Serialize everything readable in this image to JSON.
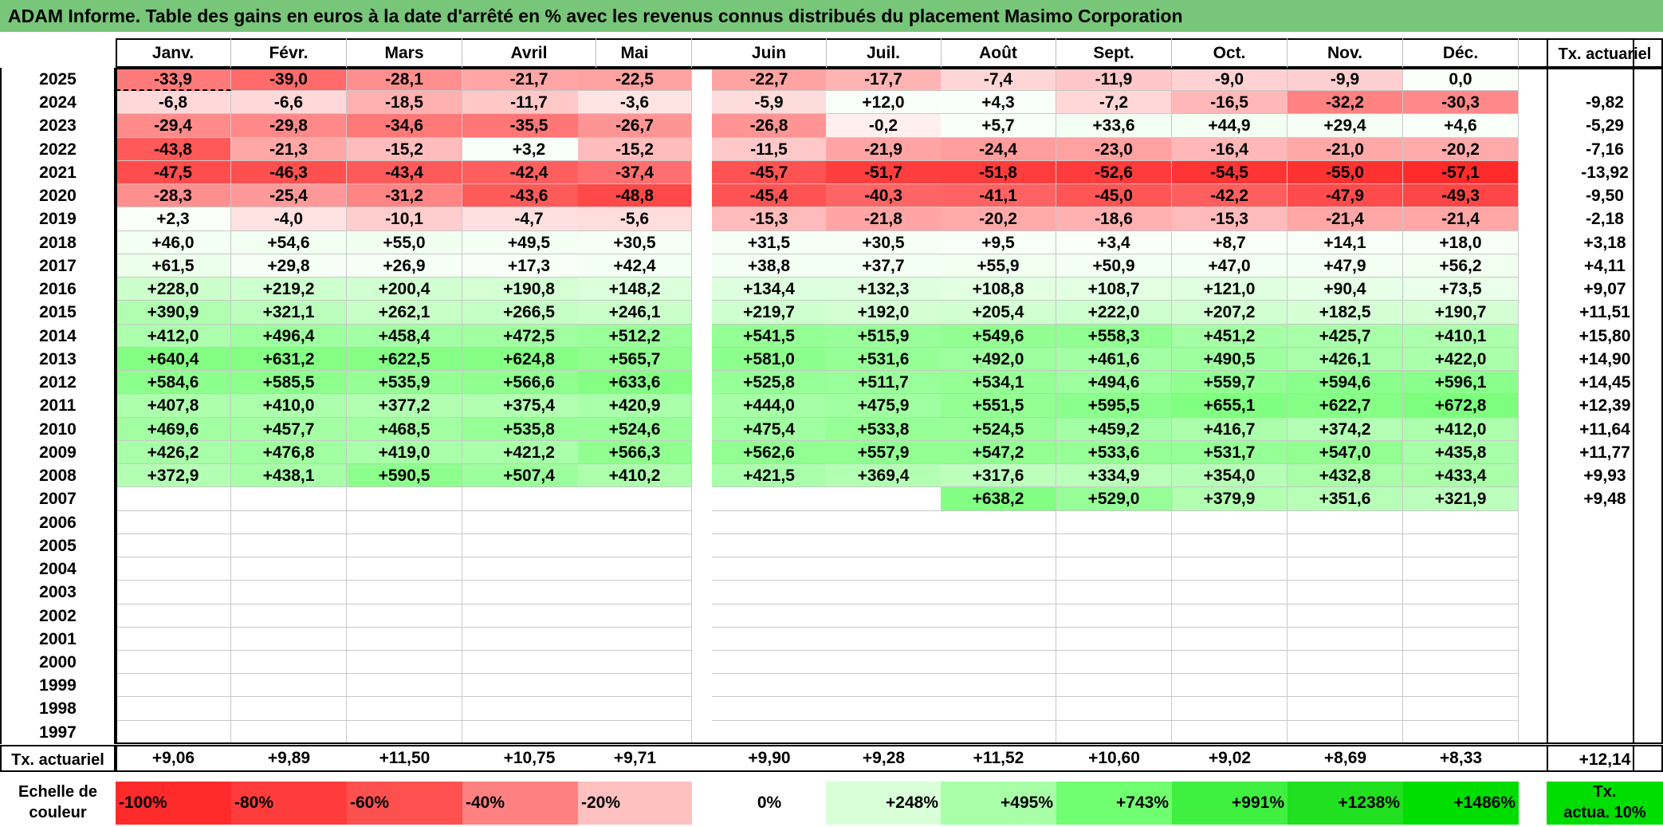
{
  "title": "ADAM Informe. Table des gains en euros à la date d'arrêté en % avec les revenus connus distribués du placement Masimo Corporation",
  "chart_data": {
    "type": "heatmap",
    "title": "ADAM Informe. Table des gains en euros à la date d'arrêté en % avec les revenus connus distribués du placement Masimo Corporation",
    "columns": [
      "Janv.",
      "Févr.",
      "Mars",
      "Avril",
      "Mai",
      "Juin",
      "Juil.",
      "Août",
      "Sept.",
      "Oct.",
      "Nov.",
      "Déc."
    ],
    "annual_header": "Tx. actuariel",
    "rows": [
      {
        "year": "2025",
        "values": [
          "-33,9",
          "-39,0",
          "-28,1",
          "-21,7",
          "-22,5",
          "-22,7",
          "-17,7",
          "-7,4",
          "-11,9",
          "-9,0",
          "-9,9",
          "0,0"
        ],
        "tx": ""
      },
      {
        "year": "2024",
        "values": [
          "-6,8",
          "-6,6",
          "-18,5",
          "-11,7",
          "-3,6",
          "-5,9",
          "+12,0",
          "+4,3",
          "-7,2",
          "-16,5",
          "-32,2",
          "-30,3"
        ],
        "tx": "-9,82"
      },
      {
        "year": "2023",
        "values": [
          "-29,4",
          "-29,8",
          "-34,6",
          "-35,5",
          "-26,7",
          "-26,8",
          "-0,2",
          "+5,7",
          "+33,6",
          "+44,9",
          "+29,4",
          "+4,6"
        ],
        "tx": "-5,29"
      },
      {
        "year": "2022",
        "values": [
          "-43,8",
          "-21,3",
          "-15,2",
          "+3,2",
          "-15,2",
          "-11,5",
          "-21,9",
          "-24,4",
          "-23,0",
          "-16,4",
          "-21,0",
          "-20,2"
        ],
        "tx": "-7,16"
      },
      {
        "year": "2021",
        "values": [
          "-47,5",
          "-46,3",
          "-43,4",
          "-42,4",
          "-37,4",
          "-45,7",
          "-51,7",
          "-51,8",
          "-52,6",
          "-54,5",
          "-55,0",
          "-57,1"
        ],
        "tx": "-13,92"
      },
      {
        "year": "2020",
        "values": [
          "-28,3",
          "-25,4",
          "-31,2",
          "-43,6",
          "-48,8",
          "-45,4",
          "-40,3",
          "-41,1",
          "-45,0",
          "-42,2",
          "-47,9",
          "-49,3"
        ],
        "tx": "-9,50"
      },
      {
        "year": "2019",
        "values": [
          "+2,3",
          "-4,0",
          "-10,1",
          "-4,7",
          "-5,6",
          "-15,3",
          "-21,8",
          "-20,2",
          "-18,6",
          "-15,3",
          "-21,4",
          "-21,4"
        ],
        "tx": "-2,18"
      },
      {
        "year": "2018",
        "values": [
          "+46,0",
          "+54,6",
          "+55,0",
          "+49,5",
          "+30,5",
          "+31,5",
          "+30,5",
          "+9,5",
          "+3,4",
          "+8,7",
          "+14,1",
          "+18,0"
        ],
        "tx": "+3,18"
      },
      {
        "year": "2017",
        "values": [
          "+61,5",
          "+29,8",
          "+26,9",
          "+17,3",
          "+42,4",
          "+38,8",
          "+37,7",
          "+55,9",
          "+50,9",
          "+47,0",
          "+47,9",
          "+56,2"
        ],
        "tx": "+4,11"
      },
      {
        "year": "2016",
        "values": [
          "+228,0",
          "+219,2",
          "+200,4",
          "+190,8",
          "+148,2",
          "+134,4",
          "+132,3",
          "+108,8",
          "+108,7",
          "+121,0",
          "+90,4",
          "+73,5"
        ],
        "tx": "+9,07"
      },
      {
        "year": "2015",
        "values": [
          "+390,9",
          "+321,1",
          "+262,1",
          "+266,5",
          "+246,1",
          "+219,7",
          "+192,0",
          "+205,4",
          "+222,0",
          "+207,2",
          "+182,5",
          "+190,7"
        ],
        "tx": "+11,51"
      },
      {
        "year": "2014",
        "values": [
          "+412,0",
          "+496,4",
          "+458,4",
          "+472,5",
          "+512,2",
          "+541,5",
          "+515,9",
          "+549,6",
          "+558,3",
          "+451,2",
          "+425,7",
          "+410,1"
        ],
        "tx": "+15,80"
      },
      {
        "year": "2013",
        "values": [
          "+640,4",
          "+631,2",
          "+622,5",
          "+624,8",
          "+565,7",
          "+581,0",
          "+531,6",
          "+492,0",
          "+461,6",
          "+490,5",
          "+426,1",
          "+422,0"
        ],
        "tx": "+14,90"
      },
      {
        "year": "2012",
        "values": [
          "+584,6",
          "+585,5",
          "+535,9",
          "+566,6",
          "+633,6",
          "+525,8",
          "+511,7",
          "+534,1",
          "+494,6",
          "+559,7",
          "+594,6",
          "+596,1"
        ],
        "tx": "+14,45"
      },
      {
        "year": "2011",
        "values": [
          "+407,8",
          "+410,0",
          "+377,2",
          "+375,4",
          "+420,9",
          "+444,0",
          "+475,9",
          "+551,5",
          "+595,5",
          "+655,1",
          "+622,7",
          "+672,8"
        ],
        "tx": "+12,39"
      },
      {
        "year": "2010",
        "values": [
          "+469,6",
          "+457,7",
          "+468,5",
          "+535,8",
          "+524,6",
          "+475,4",
          "+533,8",
          "+524,5",
          "+459,2",
          "+416,7",
          "+374,2",
          "+412,0"
        ],
        "tx": "+11,64"
      },
      {
        "year": "2009",
        "values": [
          "+426,2",
          "+476,8",
          "+419,0",
          "+421,2",
          "+566,3",
          "+562,6",
          "+557,9",
          "+547,2",
          "+533,6",
          "+531,7",
          "+547,0",
          "+435,8"
        ],
        "tx": "+11,77"
      },
      {
        "year": "2008",
        "values": [
          "+372,9",
          "+438,1",
          "+590,5",
          "+507,4",
          "+410,2",
          "+421,5",
          "+369,4",
          "+317,6",
          "+334,9",
          "+354,0",
          "+432,8",
          "+433,4"
        ],
        "tx": "+9,93"
      },
      {
        "year": "2007",
        "values": [
          "",
          "",
          "",
          "",
          "",
          "",
          "",
          "+638,2",
          "+529,0",
          "+379,9",
          "+351,6",
          "+321,9"
        ],
        "tx": "+9,48"
      },
      {
        "year": "2006",
        "values": [
          "",
          "",
          "",
          "",
          "",
          "",
          "",
          "",
          "",
          "",
          "",
          ""
        ],
        "tx": ""
      },
      {
        "year": "2005",
        "values": [
          "",
          "",
          "",
          "",
          "",
          "",
          "",
          "",
          "",
          "",
          "",
          ""
        ],
        "tx": ""
      },
      {
        "year": "2004",
        "values": [
          "",
          "",
          "",
          "",
          "",
          "",
          "",
          "",
          "",
          "",
          "",
          ""
        ],
        "tx": ""
      },
      {
        "year": "2003",
        "values": [
          "",
          "",
          "",
          "",
          "",
          "",
          "",
          "",
          "",
          "",
          "",
          ""
        ],
        "tx": ""
      },
      {
        "year": "2002",
        "values": [
          "",
          "",
          "",
          "",
          "",
          "",
          "",
          "",
          "",
          "",
          "",
          ""
        ],
        "tx": ""
      },
      {
        "year": "2001",
        "values": [
          "",
          "",
          "",
          "",
          "",
          "",
          "",
          "",
          "",
          "",
          "",
          ""
        ],
        "tx": ""
      },
      {
        "year": "2000",
        "values": [
          "",
          "",
          "",
          "",
          "",
          "",
          "",
          "",
          "",
          "",
          "",
          ""
        ],
        "tx": ""
      },
      {
        "year": "1999",
        "values": [
          "",
          "",
          "",
          "",
          "",
          "",
          "",
          "",
          "",
          "",
          "",
          ""
        ],
        "tx": ""
      },
      {
        "year": "1998",
        "values": [
          "",
          "",
          "",
          "",
          "",
          "",
          "",
          "",
          "",
          "",
          "",
          ""
        ],
        "tx": ""
      },
      {
        "year": "1997",
        "values": [
          "",
          "",
          "",
          "",
          "",
          "",
          "",
          "",
          "",
          "",
          "",
          ""
        ],
        "tx": ""
      }
    ],
    "footer": {
      "label": "Tx. actuariel",
      "values": [
        "+9,06",
        "+9,89",
        "+11,50",
        "+10,75",
        "+9,71",
        "+9,90",
        "+9,28",
        "+11,52",
        "+10,60",
        "+9,02",
        "+8,69",
        "+8,33"
      ],
      "total": "+12,14"
    },
    "scale": {
      "label_line1": "Echelle de",
      "label_line2": "couleur",
      "items": [
        {
          "label": "-100%",
          "color": "#ff2a2a"
        },
        {
          "label": "-80%",
          "color": "#ff3c3c"
        },
        {
          "label": "-60%",
          "color": "#ff5050"
        },
        {
          "label": "-40%",
          "color": "#ff8080"
        },
        {
          "label": "-20%",
          "color": "#ffc0c0"
        },
        {
          "label": "0%",
          "color": "#ffffff"
        },
        {
          "label": "+248%",
          "color": "#d8ffd8"
        },
        {
          "label": "+495%",
          "color": "#a8ffa8"
        },
        {
          "label": "+743%",
          "color": "#70ff70"
        },
        {
          "label": "+991%",
          "color": "#40f040"
        },
        {
          "label": "+1238%",
          "color": "#20e020"
        },
        {
          "label": "+1486%",
          "color": "#00dd00"
        }
      ],
      "tx_label_line1": "Tx.",
      "tx_label_line2": "actua. 10%",
      "tx_color": "#00dd00"
    },
    "colors": {
      "title_bar": "#78c679",
      "grid_lines": "#c0c0c0",
      "frame": "#000000"
    }
  }
}
